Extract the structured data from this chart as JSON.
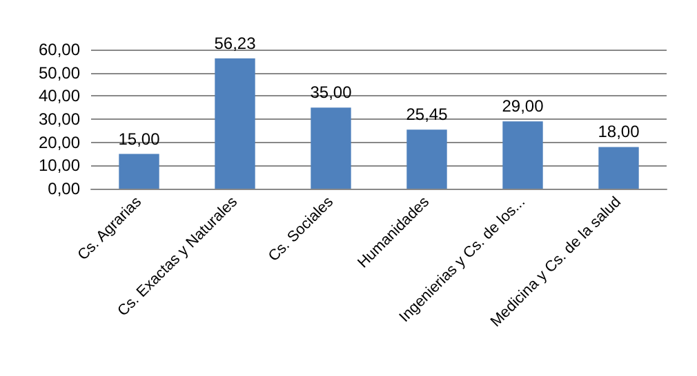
{
  "chart_data": {
    "type": "bar",
    "categories": [
      "Cs. Agrarias",
      "Cs. Exactas y Naturales",
      "Cs. Sociales",
      "Humanidades",
      "Ingenierias y Cs. de los...",
      "Medicina y Cs. de la salud"
    ],
    "values": [
      15,
      56.23,
      35,
      25.45,
      29,
      18
    ],
    "value_labels": [
      "15,00",
      "56,23",
      "35,00",
      "25,45",
      "29,00",
      "18,00"
    ],
    "color": "#4f81bd",
    "ylim": [
      0,
      60
    ],
    "yticks": [
      {
        "value": 0,
        "label": "0,00"
      },
      {
        "value": 10,
        "label": "10,00"
      },
      {
        "value": 20,
        "label": "20,00"
      },
      {
        "value": 30,
        "label": "30,00"
      },
      {
        "value": 40,
        "label": "40,00"
      },
      {
        "value": 50,
        "label": "50,00"
      },
      {
        "value": 60,
        "label": "60,00"
      }
    ],
    "grid": "y"
  }
}
